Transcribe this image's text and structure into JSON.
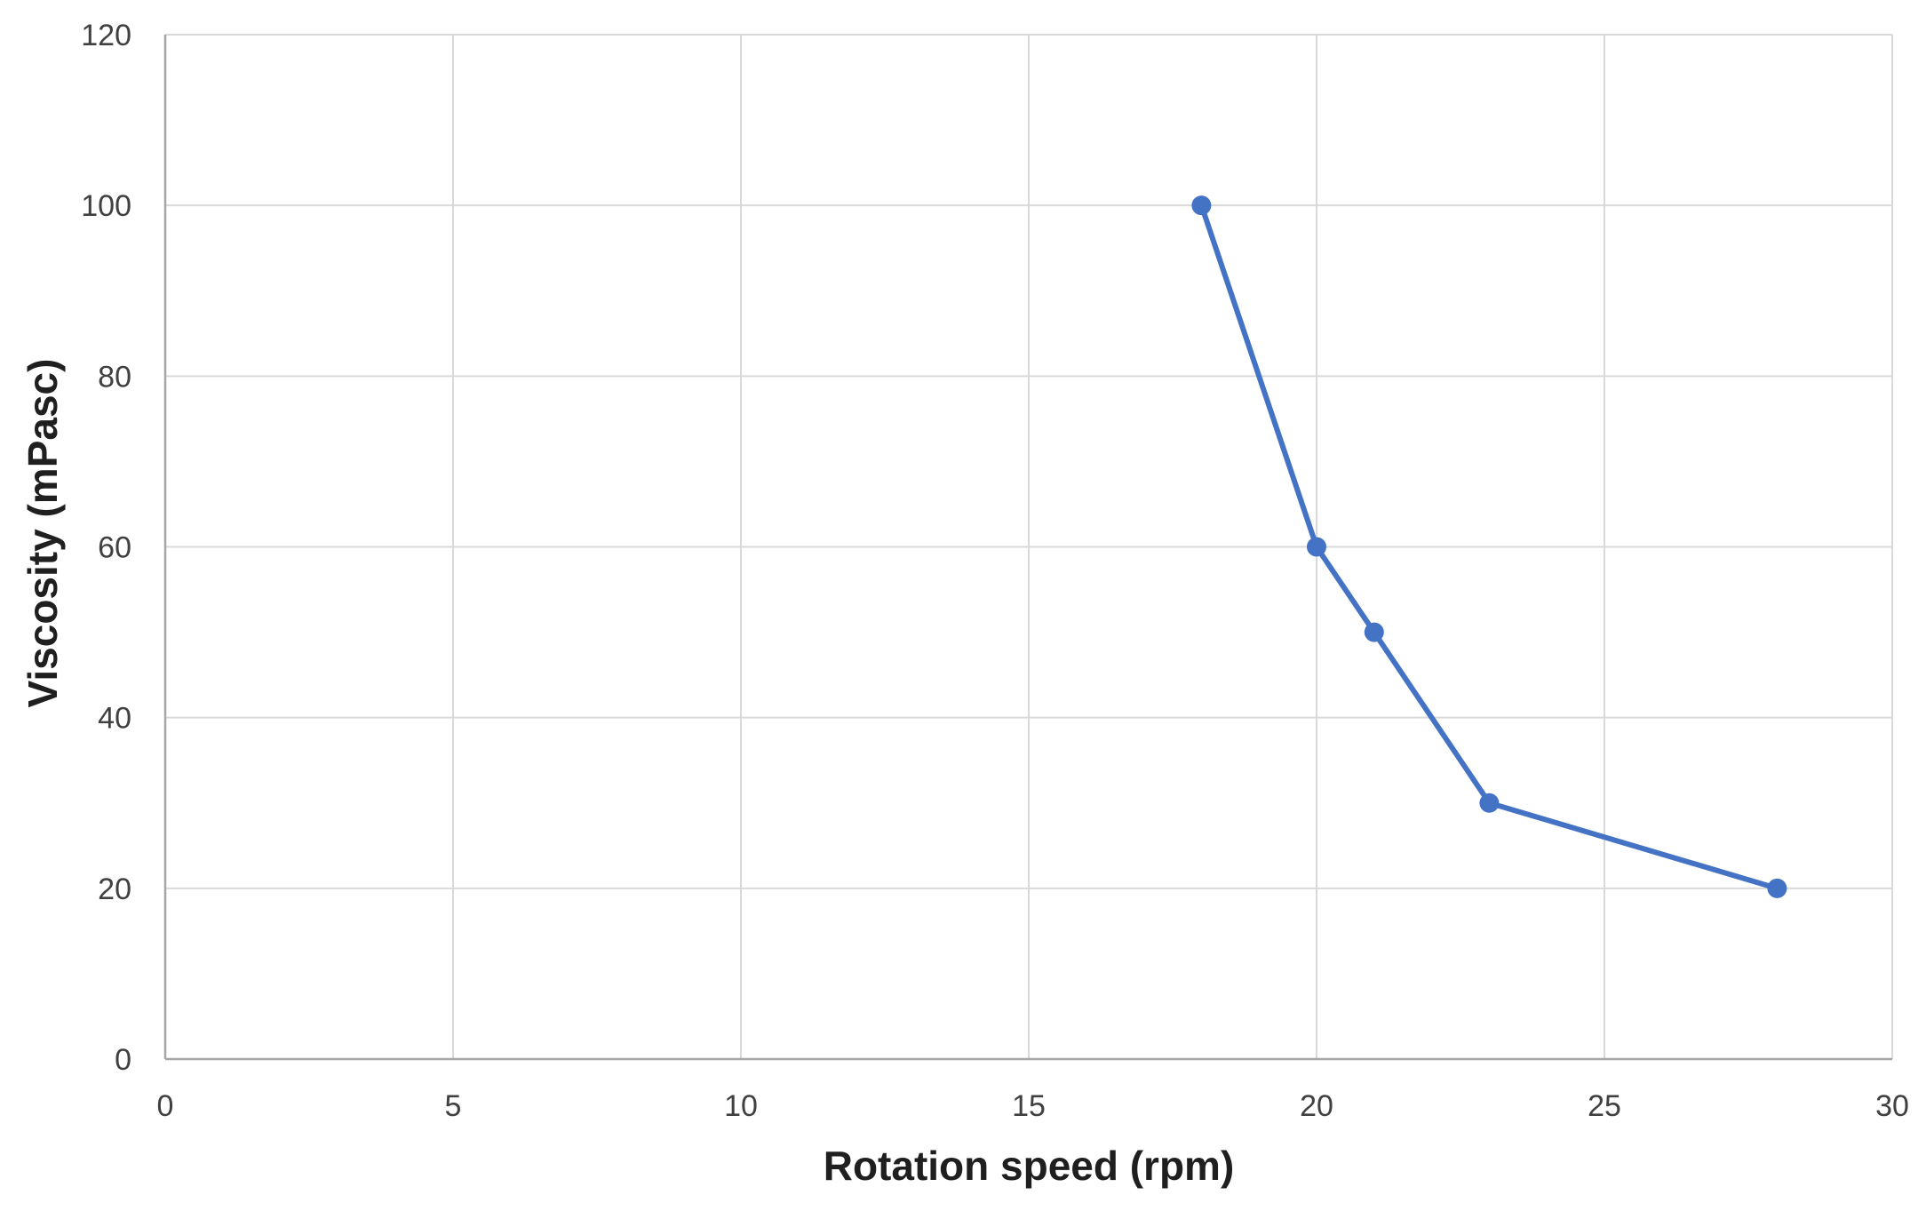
{
  "chart_data": {
    "type": "line",
    "title": "",
    "xlabel": "Rotation speed (rpm)",
    "ylabel": "Viscosity (mPasc)",
    "x": [
      18,
      20,
      21,
      23,
      28
    ],
    "y": [
      100,
      60,
      50,
      30,
      20
    ],
    "xlim": [
      0,
      30
    ],
    "ylim": [
      0,
      120
    ],
    "x_ticks": [
      0,
      5,
      10,
      15,
      20,
      25,
      30
    ],
    "y_ticks": [
      0,
      20,
      40,
      60,
      80,
      100,
      120
    ],
    "grid": true,
    "legend": false,
    "line_color": "#4472C4",
    "marker": "circle",
    "marker_color": "#4472C4",
    "gridline_color": "#D9D9D9",
    "axis_line_color": "#A6A6A6",
    "tick_label_color": "#404040",
    "axis_title_color": "#1f1f1f",
    "background_color": "#FFFFFF"
  }
}
